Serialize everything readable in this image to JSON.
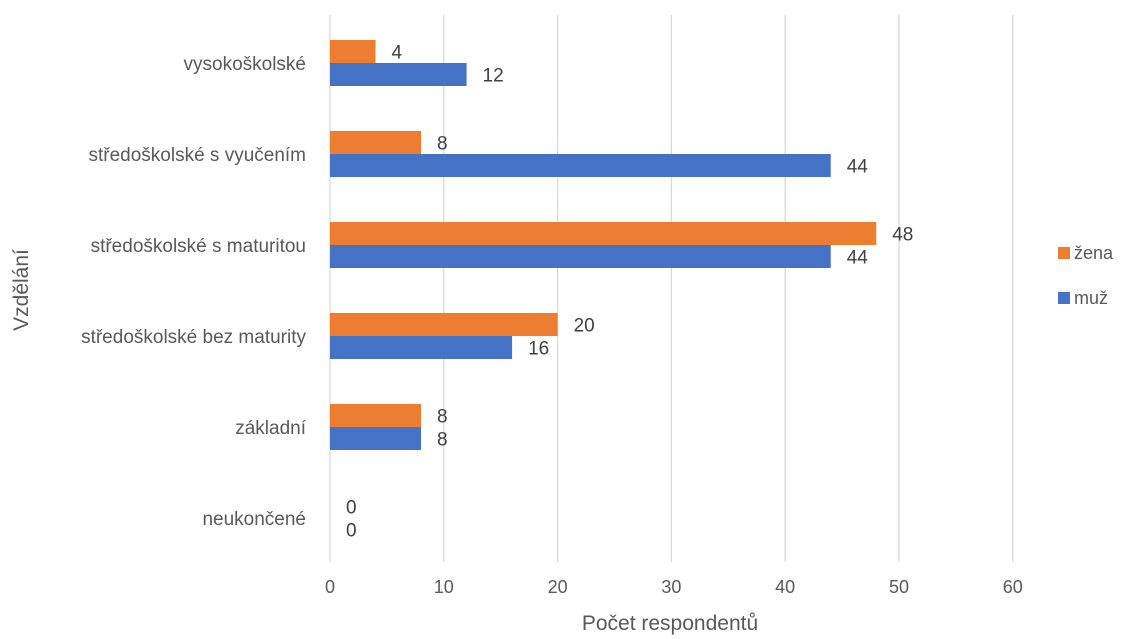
{
  "chart_data": {
    "type": "bar",
    "orientation": "horizontal",
    "categories": [
      "vysokoškolské",
      "středoškolské s vyučením",
      "středoškolské s maturitou",
      "středoškolské bez maturity",
      "základní",
      "neukončené"
    ],
    "series": [
      {
        "name": "žena",
        "color": "#ED7D31",
        "values": [
          4,
          8,
          48,
          20,
          8,
          0
        ]
      },
      {
        "name": "muž",
        "color": "#4472C4",
        "values": [
          12,
          44,
          44,
          16,
          8,
          0
        ]
      }
    ],
    "xlabel": "Počet respondentů",
    "ylabel": "Vzdělání",
    "xlim": [
      0,
      60
    ],
    "xticks": [
      0,
      10,
      20,
      30,
      40,
      50,
      60
    ],
    "grid": true,
    "legend": "right"
  }
}
